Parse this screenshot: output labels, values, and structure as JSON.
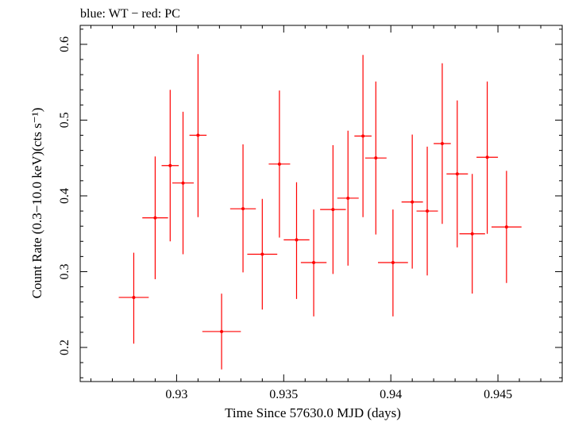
{
  "chart_data": {
    "type": "scatter",
    "title": "blue: WT − red: PC",
    "xlabel": "Time Since 57630.0 MJD (days)",
    "ylabel": "Count Rate (0.3−10.0 keV)(cts s⁻¹)",
    "xlim": [
      0.9255,
      0.948
    ],
    "ylim": [
      0.155,
      0.625
    ],
    "xticks": [
      "0.93",
      "0.935",
      "0.94",
      "0.945"
    ],
    "yticks": [
      "0.2",
      "0.3",
      "0.4",
      "0.5",
      "0.6"
    ],
    "grid": false,
    "series": [
      {
        "name": "PC",
        "color": "#ff0000",
        "points": [
          {
            "x": 0.928,
            "xerr": 0.0007,
            "y": 0.266,
            "yerr_lo": 0.061,
            "yerr_hi": 0.059
          },
          {
            "x": 0.929,
            "xerr": 0.0006,
            "y": 0.371,
            "yerr_lo": 0.081,
            "yerr_hi": 0.081
          },
          {
            "x": 0.9297,
            "xerr": 0.0004,
            "y": 0.44,
            "yerr_lo": 0.1,
            "yerr_hi": 0.1
          },
          {
            "x": 0.9303,
            "xerr": 0.0005,
            "y": 0.417,
            "yerr_lo": 0.094,
            "yerr_hi": 0.094
          },
          {
            "x": 0.931,
            "xerr": 0.0004,
            "y": 0.48,
            "yerr_lo": 0.108,
            "yerr_hi": 0.107
          },
          {
            "x": 0.9321,
            "xerr": 0.0009,
            "y": 0.221,
            "yerr_lo": 0.05,
            "yerr_hi": 0.05
          },
          {
            "x": 0.9331,
            "xerr": 0.0006,
            "y": 0.383,
            "yerr_lo": 0.084,
            "yerr_hi": 0.085
          },
          {
            "x": 0.934,
            "xerr": 0.0007,
            "y": 0.323,
            "yerr_lo": 0.073,
            "yerr_hi": 0.073
          },
          {
            "x": 0.9348,
            "xerr": 0.0005,
            "y": 0.442,
            "yerr_lo": 0.097,
            "yerr_hi": 0.097
          },
          {
            "x": 0.9356,
            "xerr": 0.0006,
            "y": 0.342,
            "yerr_lo": 0.078,
            "yerr_hi": 0.076
          },
          {
            "x": 0.9364,
            "xerr": 0.0006,
            "y": 0.312,
            "yerr_lo": 0.071,
            "yerr_hi": 0.07
          },
          {
            "x": 0.9373,
            "xerr": 0.0006,
            "y": 0.382,
            "yerr_lo": 0.085,
            "yerr_hi": 0.085
          },
          {
            "x": 0.938,
            "xerr": 0.0005,
            "y": 0.397,
            "yerr_lo": 0.089,
            "yerr_hi": 0.089
          },
          {
            "x": 0.9387,
            "xerr": 0.0004,
            "y": 0.479,
            "yerr_lo": 0.107,
            "yerr_hi": 0.107
          },
          {
            "x": 0.9393,
            "xerr": 0.0005,
            "y": 0.45,
            "yerr_lo": 0.101,
            "yerr_hi": 0.101
          },
          {
            "x": 0.9401,
            "xerr": 0.0007,
            "y": 0.312,
            "yerr_lo": 0.071,
            "yerr_hi": 0.07
          },
          {
            "x": 0.941,
            "xerr": 0.0005,
            "y": 0.392,
            "yerr_lo": 0.088,
            "yerr_hi": 0.089
          },
          {
            "x": 0.9417,
            "xerr": 0.0005,
            "y": 0.38,
            "yerr_lo": 0.085,
            "yerr_hi": 0.085
          },
          {
            "x": 0.9424,
            "xerr": 0.0004,
            "y": 0.469,
            "yerr_lo": 0.106,
            "yerr_hi": 0.106
          },
          {
            "x": 0.9431,
            "xerr": 0.0005,
            "y": 0.429,
            "yerr_lo": 0.097,
            "yerr_hi": 0.097
          },
          {
            "x": 0.9438,
            "xerr": 0.0006,
            "y": 0.35,
            "yerr_lo": 0.079,
            "yerr_hi": 0.079
          },
          {
            "x": 0.9445,
            "xerr": 0.0005,
            "y": 0.451,
            "yerr_lo": 0.101,
            "yerr_hi": 0.1
          },
          {
            "x": 0.9454,
            "xerr": 0.0007,
            "y": 0.359,
            "yerr_lo": 0.074,
            "yerr_hi": 0.074
          }
        ]
      }
    ]
  }
}
